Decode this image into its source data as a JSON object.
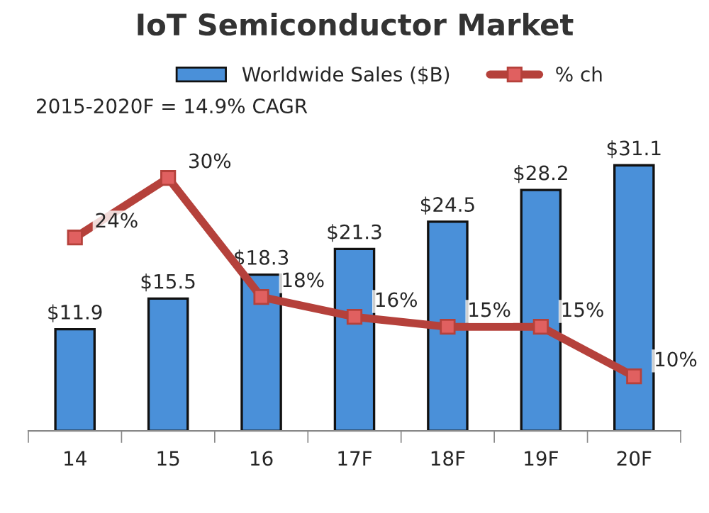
{
  "chart_data": {
    "type": "bar",
    "title": "IoT Semiconductor Market",
    "categories": [
      "14",
      "15",
      "16",
      "17F",
      "18F",
      "19F",
      "20F"
    ],
    "series": [
      {
        "name": "Worldwide Sales ($B)",
        "color": "#4a90d9",
        "values": [
          11.9,
          15.5,
          18.3,
          21.3,
          24.5,
          28.2,
          31.1
        ],
        "value_labels": [
          "$11.9",
          "$15.5",
          "$18.3",
          "$21.3",
          "$24.5",
          "$28.2",
          "$31.1"
        ]
      },
      {
        "name": "% ch",
        "type": "line",
        "axis": "y2",
        "color": "#b5413b",
        "marker": "square",
        "values": [
          24,
          30,
          18,
          16,
          15,
          15,
          10
        ],
        "value_labels": [
          "24%",
          "30%",
          "18%",
          "16%",
          "15%",
          "15%",
          "10%"
        ]
      }
    ],
    "tick_labels": "x",
    "grid": false,
    "legend": "top",
    "annotations": [
      "2015-2020F = 14.9% CAGR"
    ]
  }
}
